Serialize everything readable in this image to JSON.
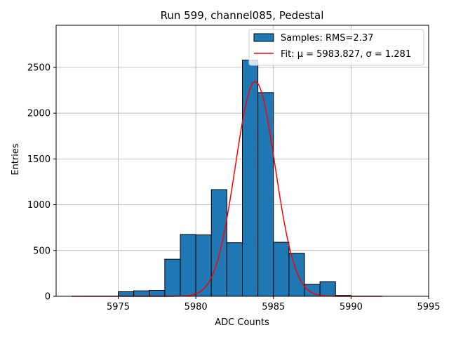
{
  "chart_data": {
    "type": "bar",
    "title": "Run 599, channel085, Pedestal",
    "xlabel": "ADC Counts",
    "ylabel": "Entries",
    "xlim": [
      971,
      995
    ],
    "ylim": [
      0,
      2960
    ],
    "xticks": [
      975,
      980,
      985,
      990,
      995
    ],
    "xtick_labels": [
      "5975",
      "5980",
      "5985",
      "5990",
      "5995"
    ],
    "yticks": [
      0,
      500,
      1000,
      1500,
      2000,
      2500
    ],
    "ytick_labels": [
      "0",
      "500",
      "1000",
      "1500",
      "2000",
      "2500"
    ],
    "grid": true,
    "legend_position": "top-right",
    "histogram": {
      "name": "Samples: RMS=2.37",
      "color": "#1f77b4",
      "edge_color": "#000000",
      "bin_edges": [
        5975,
        5976,
        5977,
        5978,
        5979,
        5980,
        5981,
        5982,
        5983,
        5984,
        5985,
        5986,
        5987,
        5988,
        5989,
        5990
      ],
      "counts": [
        50,
        60,
        65,
        405,
        675,
        670,
        1165,
        585,
        2580,
        2225,
        590,
        470,
        130,
        160,
        10
      ]
    },
    "fit": {
      "name": "Fit: μ = 5983.827, σ = 1.281",
      "color": "#ff0000",
      "mu": 5983.827,
      "sigma": 1.281,
      "amplitude": 2345,
      "x_range": [
        5972,
        5992
      ]
    }
  }
}
